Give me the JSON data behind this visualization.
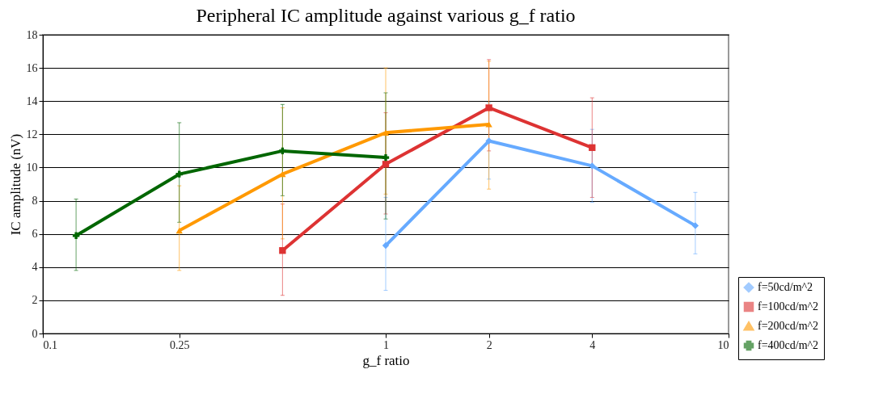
{
  "chart_data": {
    "type": "line",
    "title": "Peripheral IC amplitude against various g_f ratio",
    "xlabel": "g_f ratio",
    "ylabel": "IC amplitude (nV)",
    "log": "x",
    "xlim": [
      0.1,
      10
    ],
    "xticks": [
      0.1,
      0.25,
      1,
      2,
      4,
      10
    ],
    "ylim": [
      0,
      18
    ],
    "yticks": [
      0,
      2,
      4,
      6,
      8,
      10,
      12,
      14,
      16,
      18
    ],
    "grid": "y",
    "legend": "bottom right",
    "series": [
      {
        "name": "f=50cd/m^2",
        "color": "#66aaff",
        "marker": "diamond",
        "x": [
          1,
          2,
          4,
          8
        ],
        "values": [
          5.3,
          11.6,
          10.1,
          6.5
        ],
        "errors": [
          [
            2.6,
            8.2
          ],
          [
            9.3,
            13.9
          ],
          [
            7.9,
            12.3
          ],
          [
            4.8,
            8.5
          ]
        ]
      },
      {
        "name": "f=100cd/m^2",
        "color": "#dd3333",
        "marker": "square",
        "x": [
          0.5,
          1,
          2,
          4
        ],
        "values": [
          5.0,
          10.2,
          13.6,
          11.2
        ],
        "errors": [
          [
            2.3,
            7.8
          ],
          [
            7.2,
            13.3
          ],
          [
            11.0,
            16.5
          ],
          [
            8.2,
            14.2
          ]
        ]
      },
      {
        "name": "f=200cd/m^2",
        "color": "#ff9900",
        "marker": "triangle",
        "x": [
          0.25,
          0.5,
          1,
          2
        ],
        "values": [
          6.2,
          9.6,
          12.1,
          12.6
        ],
        "errors": [
          [
            3.8,
            8.9
          ],
          [
            5.7,
            13.6
          ],
          [
            8.4,
            16.0
          ],
          [
            8.7,
            16.4
          ]
        ]
      },
      {
        "name": "f=400cd/m^2",
        "color": "#006600",
        "marker": "cross",
        "x": [
          0.125,
          0.25,
          0.5,
          1
        ],
        "values": [
          5.9,
          9.6,
          11.0,
          10.6
        ],
        "errors": [
          [
            3.8,
            8.1
          ],
          [
            6.7,
            12.7
          ],
          [
            8.3,
            13.8
          ],
          [
            6.9,
            14.5
          ]
        ]
      }
    ]
  }
}
